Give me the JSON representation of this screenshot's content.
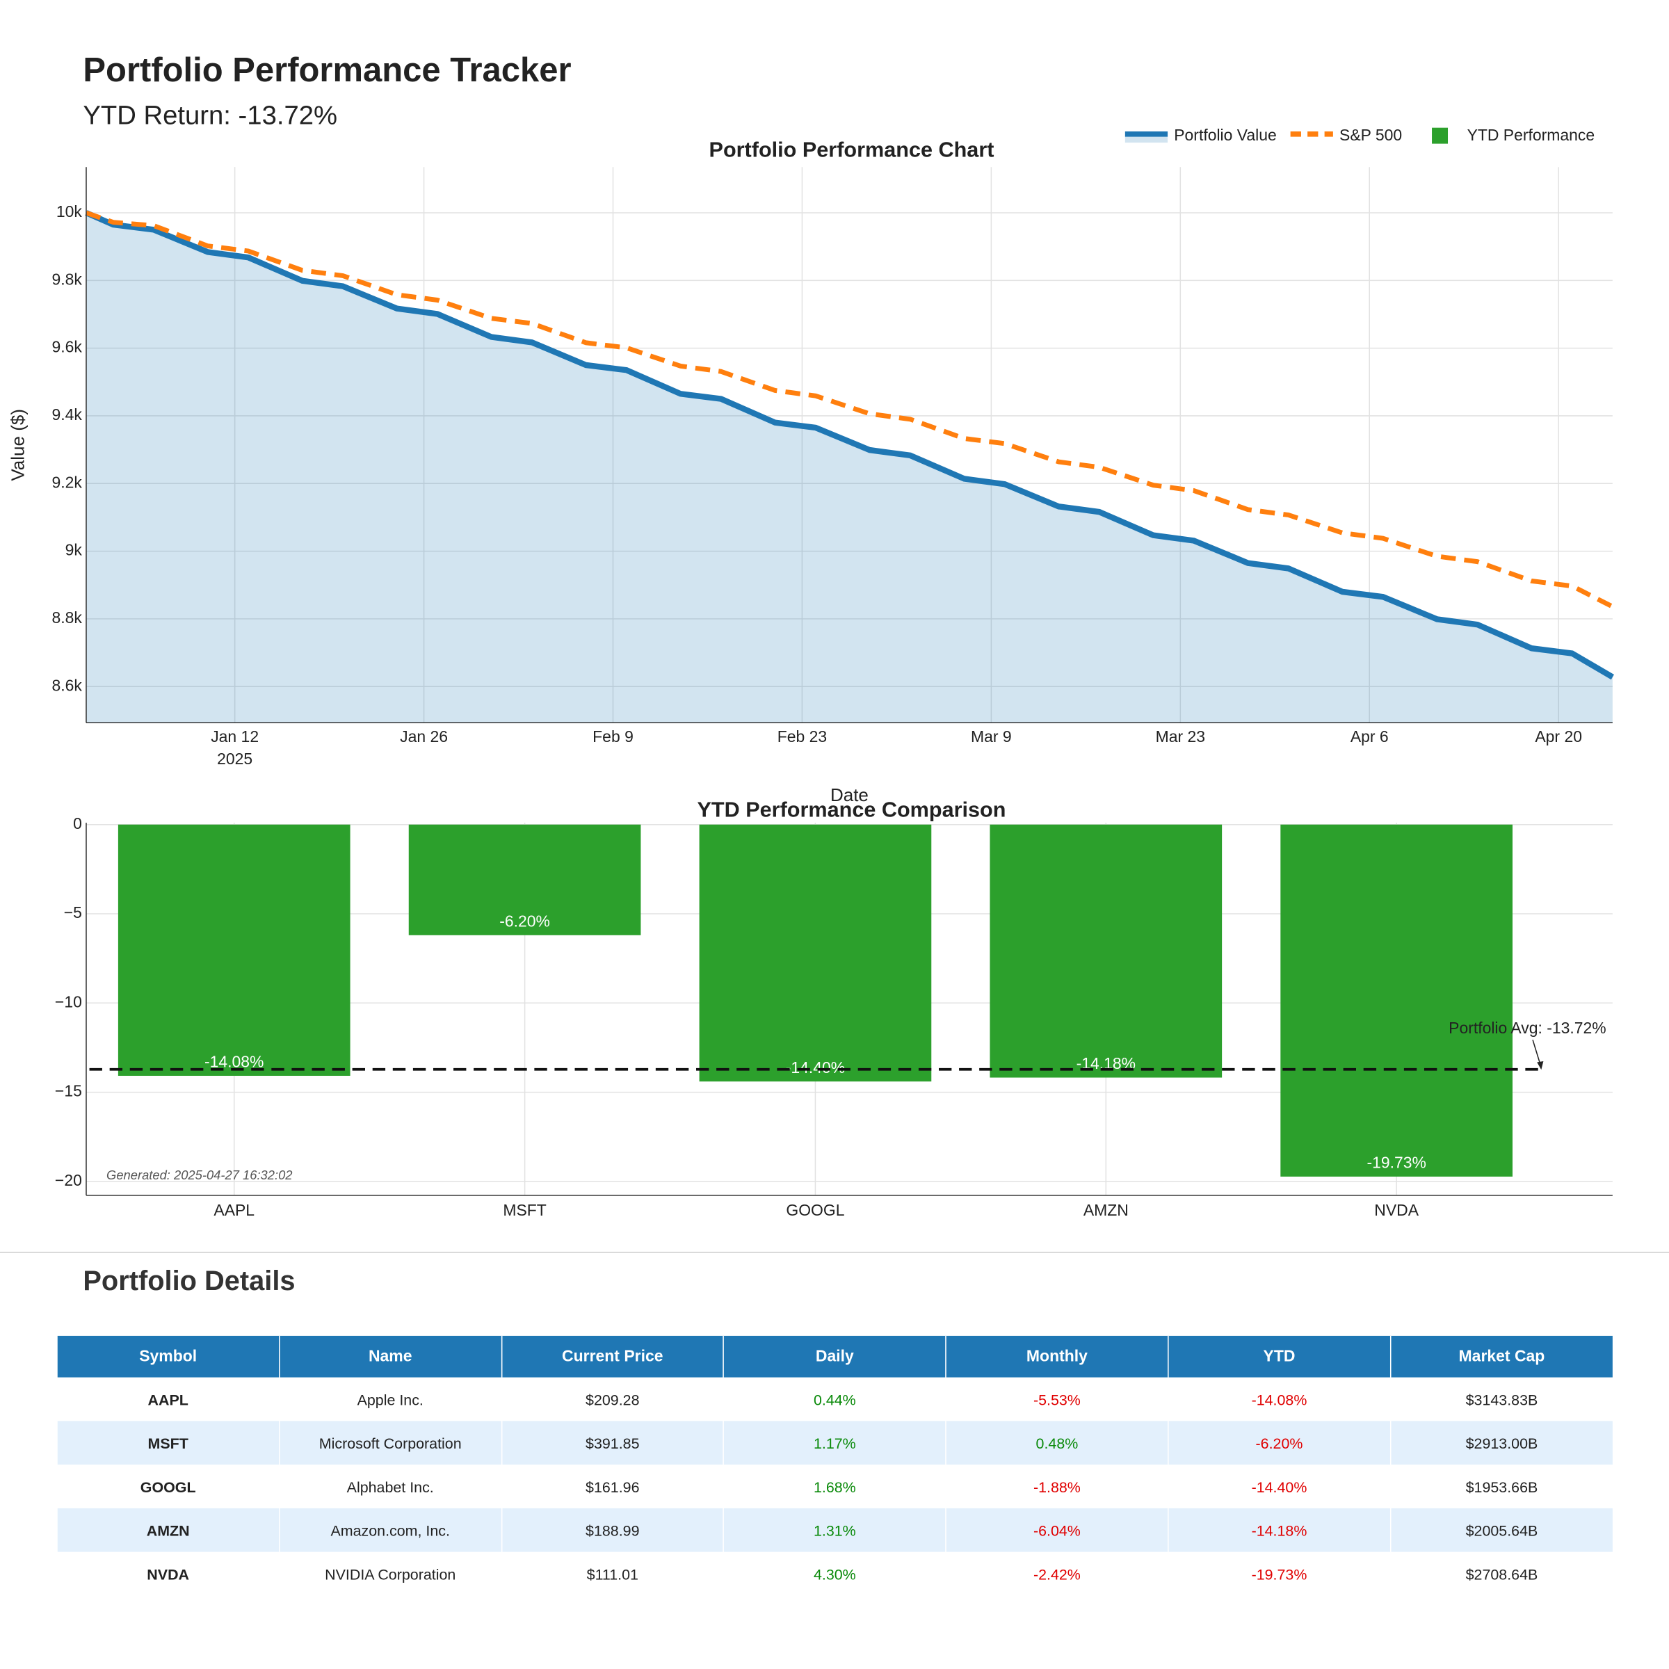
{
  "header": {
    "title": "Portfolio Performance Tracker",
    "subtitle": "YTD Return: -13.72%"
  },
  "chart_data": [
    {
      "type": "line",
      "title": "Portfolio Performance Chart",
      "x_label": "Date",
      "y_label": "Value ($)",
      "x": [
        "2025-01-01",
        "2025-01-03",
        "2025-01-06",
        "2025-01-10",
        "2025-01-13",
        "2025-01-17",
        "2025-01-20",
        "2025-01-24",
        "2025-01-27",
        "2025-01-31",
        "2025-02-03",
        "2025-02-07",
        "2025-02-10",
        "2025-02-14",
        "2025-02-17",
        "2025-02-21",
        "2025-02-24",
        "2025-02-28",
        "2025-03-03",
        "2025-03-07",
        "2025-03-10",
        "2025-03-14",
        "2025-03-17",
        "2025-03-21",
        "2025-03-24",
        "2025-03-28",
        "2025-03-31",
        "2025-04-04",
        "2025-04-07",
        "2025-04-11",
        "2025-04-14",
        "2025-04-18",
        "2025-04-21",
        "2025-04-24"
      ],
      "series": [
        {
          "name": "Portfolio Value",
          "color": "#1f77b4",
          "line_style": "solid",
          "fill": true,
          "values": [
            10000,
            9965,
            9950,
            9884,
            9868,
            9799,
            9783,
            9717,
            9701,
            9633,
            9617,
            9550,
            9535,
            9465,
            9450,
            9380,
            9365,
            9299,
            9283,
            9214,
            9198,
            9132,
            9116,
            9047,
            9031,
            8965,
            8949,
            8880,
            8865,
            8799,
            8783,
            8713,
            8698,
            8628
          ]
        },
        {
          "name": "S&P 500",
          "color": "#ff7f0e",
          "line_style": "dashed",
          "fill": false,
          "values": [
            10000,
            9972,
            9962,
            9902,
            9887,
            9830,
            9814,
            9758,
            9742,
            9688,
            9673,
            9616,
            9601,
            9547,
            9531,
            9475,
            9459,
            9406,
            9390,
            9333,
            9318,
            9264,
            9248,
            9195,
            9179,
            9123,
            9107,
            9054,
            9038,
            8985,
            8969,
            8912,
            8897,
            8836
          ]
        }
      ],
      "xlim": [
        "2025-01-01",
        "2025-04-24"
      ],
      "xticks": [
        {
          "value": "2025-01-12",
          "label": "Jan 12",
          "sublabel": "2025"
        },
        {
          "value": "2025-01-26",
          "label": "Jan 26"
        },
        {
          "value": "2025-02-09",
          "label": "Feb 9"
        },
        {
          "value": "2025-02-23",
          "label": "Feb 23"
        },
        {
          "value": "2025-03-09",
          "label": "Mar 9"
        },
        {
          "value": "2025-03-23",
          "label": "Mar 23"
        },
        {
          "value": "2025-04-06",
          "label": "Apr 6"
        },
        {
          "value": "2025-04-20",
          "label": "Apr 20"
        }
      ],
      "ylim": [
        8493,
        10135
      ],
      "yticks": [
        {
          "value": 8600,
          "label": "8.6k"
        },
        {
          "value": 8800,
          "label": "8.8k"
        },
        {
          "value": 9000,
          "label": "9k"
        },
        {
          "value": 9200,
          "label": "9.2k"
        },
        {
          "value": 9400,
          "label": "9.4k"
        },
        {
          "value": 9600,
          "label": "9.6k"
        },
        {
          "value": 9800,
          "label": "9.8k"
        },
        {
          "value": 10000,
          "label": "10k"
        }
      ],
      "grid": true,
      "legend": "top-right"
    },
    {
      "type": "bar",
      "title": "YTD Performance Comparison",
      "categories": [
        "AAPL",
        "MSFT",
        "GOOGL",
        "AMZN",
        "NVDA"
      ],
      "series": [
        {
          "name": "YTD Performance",
          "color": "#2ca02c",
          "values": [
            -14.08,
            -6.2,
            -14.4,
            -14.18,
            -19.73
          ],
          "value_labels": [
            "-14.08%",
            "-6.20%",
            "-14.40%",
            "-14.18%",
            "-19.73%"
          ]
        }
      ],
      "ylim": [
        -20.78,
        0.1
      ],
      "yticks": [
        {
          "value": -20,
          "label": "−20"
        },
        {
          "value": -15,
          "label": "−15"
        },
        {
          "value": -10,
          "label": "−10"
        },
        {
          "value": -5,
          "label": "−5"
        },
        0
      ],
      "reference_line": {
        "value": -13.72,
        "label": "Portfolio Avg: -13.72%"
      },
      "footnote": "Generated: 2025-04-27 16:32:02",
      "grid": true
    }
  ],
  "table": {
    "title": "Portfolio Details",
    "columns": [
      "Symbol",
      "Name",
      "Current Price",
      "Daily",
      "Monthly",
      "YTD",
      "Market Cap"
    ],
    "rows": [
      [
        "AAPL",
        "Apple Inc.",
        "$209.28",
        "0.44%",
        "-5.53%",
        "-14.08%",
        "$3143.83B"
      ],
      [
        "MSFT",
        "Microsoft Corporation",
        "$391.85",
        "1.17%",
        "0.48%",
        "-6.20%",
        "$2913.00B"
      ],
      [
        "GOOGL",
        "Alphabet Inc.",
        "$161.96",
        "1.68%",
        "-1.88%",
        "-14.40%",
        "$1953.66B"
      ],
      [
        "AMZN",
        "Amazon.com, Inc.",
        "$188.99",
        "1.31%",
        "-6.04%",
        "-14.18%",
        "$2005.64B"
      ],
      [
        "NVDA",
        "NVIDIA Corporation",
        "$111.01",
        "4.30%",
        "-2.42%",
        "-19.73%",
        "$2708.64B"
      ]
    ]
  }
}
